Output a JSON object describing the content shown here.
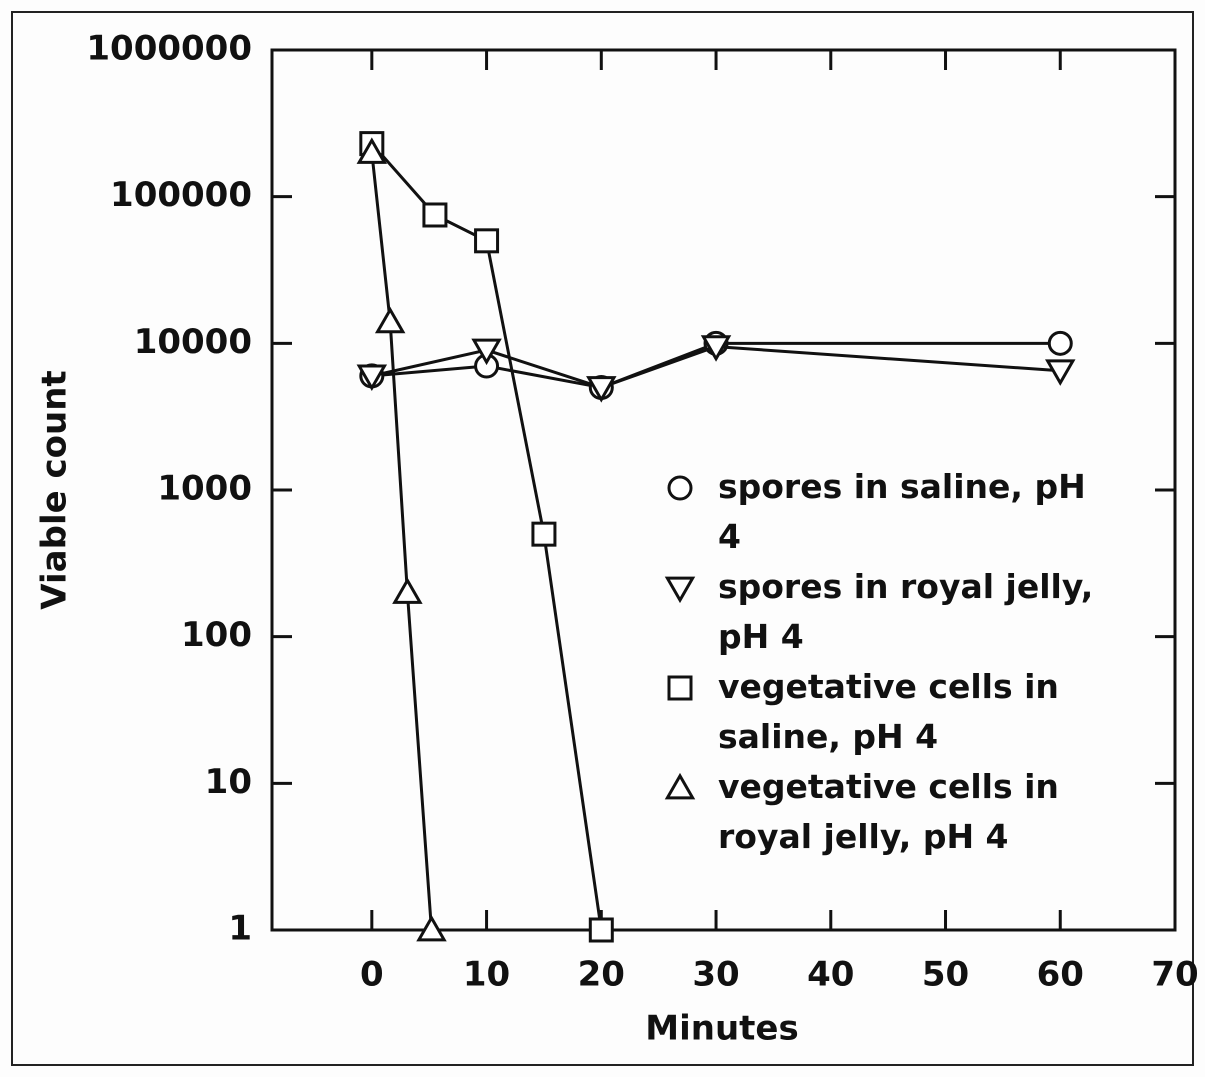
{
  "chart_data": {
    "type": "line",
    "xlabel": "Minutes",
    "ylabel": "Viable count",
    "xlim": [
      -8.7,
      70
    ],
    "xticks": [
      0,
      10,
      20,
      30,
      40,
      50,
      60,
      70
    ],
    "ylim": [
      1,
      1000000
    ],
    "yticks": [
      1,
      10,
      100,
      1000,
      10000,
      100000,
      1000000
    ],
    "ylog": true,
    "series": [
      {
        "name": "spores in saline, pH 4",
        "color": "#111111",
        "marker": "circle",
        "x": [
          0,
          10,
          20,
          30,
          60
        ],
        "values": [
          6000,
          7000,
          5000,
          10000,
          10000
        ]
      },
      {
        "name": "spores in royal jelly, pH 4",
        "color": "#111111",
        "marker": "triangle-down",
        "x": [
          0,
          10,
          20,
          30,
          60
        ],
        "values": [
          6000,
          9000,
          5000,
          9500,
          6500
        ]
      },
      {
        "name": "vegetative cells in saline, pH 4",
        "color": "#111111",
        "marker": "square",
        "x": [
          0,
          5.5,
          10,
          15,
          20
        ],
        "values": [
          230000,
          75000,
          50000,
          500,
          1
        ]
      },
      {
        "name": "vegetative cells in royal jelly, pH 4",
        "color": "#111111",
        "marker": "triangle-up",
        "x": [
          0,
          1.6,
          3.1,
          5.2
        ],
        "values": [
          200000,
          14000,
          200,
          1
        ]
      }
    ],
    "legend": "right"
  }
}
